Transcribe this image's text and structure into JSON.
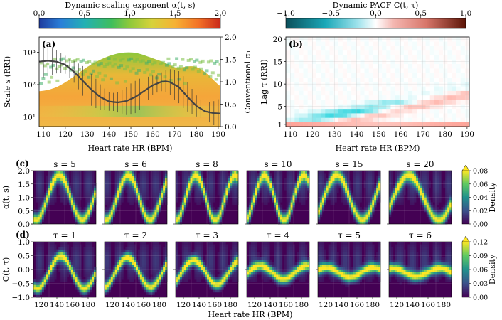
{
  "chart_data": [
    {
      "id": "a",
      "panel_label": "(a)",
      "type": "heatmap",
      "title": "Dynamic scaling exponent α(t, s)",
      "xlabel": "Heart rate HR (BPM)",
      "ylabel": "Scale s (RRI)",
      "ylabel_right": "Conventional α₁",
      "xlim": [
        108,
        191
      ],
      "xticks": [
        110,
        120,
        130,
        140,
        150,
        160,
        170,
        180,
        190
      ],
      "ylim_log": [
        5,
        3000
      ],
      "yticks_log": [
        {
          "value": 10,
          "label": "10¹"
        },
        {
          "value": 100,
          "label": "10²"
        },
        {
          "value": 1000,
          "label": "10³"
        }
      ],
      "y2lim": [
        0,
        2
      ],
      "y2ticks": [
        "0.0",
        "0.5",
        "1.0",
        "1.5",
        "2.0"
      ],
      "colorbar": {
        "range": [
          0,
          2
        ],
        "ticks": [
          "0.0",
          "0.5",
          "1.0",
          "1.5",
          "2.0"
        ],
        "colormap": "turbo"
      },
      "conventional_alpha1": {
        "hr": [
          108,
          112,
          116,
          120,
          124,
          128,
          132,
          136,
          140,
          144,
          148,
          152,
          156,
          160,
          164,
          166,
          168,
          172,
          176,
          180,
          184,
          188,
          191
        ],
        "alpha": [
          1.45,
          1.47,
          1.45,
          1.38,
          1.22,
          1.02,
          0.82,
          0.66,
          0.56,
          0.54,
          0.57,
          0.66,
          0.79,
          0.92,
          1.0,
          1.01,
          0.99,
          0.88,
          0.66,
          0.46,
          0.34,
          0.3,
          0.29
        ]
      }
    },
    {
      "id": "b",
      "panel_label": "(b)",
      "type": "heatmap",
      "title": "Dynamic PACF C(t, τ)",
      "xlabel": "Heart rate HR (BPM)",
      "ylabel": "Lag τ (RRI)",
      "xlim": [
        108,
        191
      ],
      "xticks": [
        110,
        120,
        130,
        140,
        150,
        160,
        170,
        180,
        190
      ],
      "ylim": [
        0.5,
        20.5
      ],
      "yticks": [
        1,
        5,
        10,
        15,
        20
      ],
      "colorbar": {
        "range": [
          -1,
          1
        ],
        "ticks": [
          "−1.0",
          "−0.5",
          "0.0",
          "0.5",
          "1.0"
        ],
        "colormap": "diverging teal-white-brown"
      }
    },
    {
      "id": "c",
      "panel_label": "(c)",
      "type": "heatmap",
      "row_ylabel": "α(t, s)",
      "ylim": [
        0,
        2
      ],
      "yticks": [
        "0.0",
        "0.5",
        "1.0",
        "1.5",
        "2.0"
      ],
      "subplot_titles": [
        "s = 5",
        "s = 6",
        "s = 8",
        "s = 10",
        "s = 15",
        "s = 20"
      ],
      "colorbar_label": "Density",
      "colorbar_ticks": [
        "0.00",
        "0.02",
        "0.04",
        "0.06",
        "0.08"
      ]
    },
    {
      "id": "d",
      "panel_label": "(d)",
      "type": "heatmap",
      "row_ylabel": "C(t, τ)",
      "ylim": [
        -1,
        1
      ],
      "yticks": [
        "1.0",
        "0.5",
        "0.0",
        "−0.5",
        "−1.0"
      ],
      "xticks": [
        "120",
        "140",
        "160",
        "180"
      ],
      "xlabel": "Heart rate HR (BPM)",
      "subplot_titles": [
        "τ = 1",
        "τ = 2",
        "τ = 3",
        "τ = 4",
        "τ = 5",
        "τ = 6"
      ],
      "colorbar_label": "Density",
      "colorbar_ticks": [
        "0.00",
        "0.03",
        "0.06",
        "0.09",
        "0.12"
      ]
    }
  ]
}
